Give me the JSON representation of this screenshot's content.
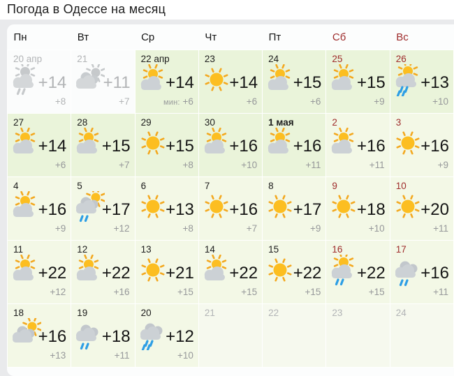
{
  "title": "Погода в Одессе на месяц",
  "min_prefix": "мин:",
  "colors": {
    "weekend": "#9e2b2b",
    "hl_border": "#7abd40",
    "hl_bg": "#eaf4da",
    "cell_bg": "#f3f8e6",
    "next_bg": "#f6f9ee",
    "past_bg": "#fbfcfc",
    "sun": "#fcbe21",
    "sun_ray": "#f3a81f",
    "cloud": "#ccd1d5",
    "cloud_dark": "#c2c7cc",
    "rain": "#2d9ee5"
  },
  "weekdays": [
    {
      "label": "Пн",
      "weekend": false
    },
    {
      "label": "Вт",
      "weekend": false
    },
    {
      "label": "Ср",
      "weekend": false
    },
    {
      "label": "Чт",
      "weekend": false
    },
    {
      "label": "Пт",
      "weekend": false
    },
    {
      "label": "Сб",
      "weekend": true
    },
    {
      "label": "Вс",
      "weekend": true
    }
  ],
  "days": [
    {
      "date": "20 апр",
      "state": "past",
      "icon": "sun-cloud-rain2",
      "tmax": "+14",
      "tmin": "+8"
    },
    {
      "date": "21",
      "state": "past",
      "icon": "clouds-sun",
      "tmax": "+11",
      "tmin": "+7"
    },
    {
      "date": "22 апр",
      "state": "highlight",
      "icon": "sun-cloud",
      "tmax": "+14",
      "tmin": "+6",
      "min_label": true
    },
    {
      "date": "23",
      "state": "highlight",
      "icon": "sun",
      "tmax": "+14",
      "tmin": "+6"
    },
    {
      "date": "24",
      "state": "highlight",
      "icon": "sun-cloud",
      "tmax": "+15",
      "tmin": "+6"
    },
    {
      "date": "25",
      "state": "highlight",
      "weekend": true,
      "icon": "sun-cloud",
      "tmax": "+15",
      "tmin": "+9"
    },
    {
      "date": "26",
      "state": "highlight",
      "weekend": true,
      "icon": "sun-cloud-rain4",
      "tmax": "+13",
      "tmin": "+10"
    },
    {
      "date": "27",
      "state": "highlight",
      "icon": "sun-cloud",
      "tmax": "+14",
      "tmin": "+6"
    },
    {
      "date": "28",
      "state": "highlight",
      "icon": "sun-cloud",
      "tmax": "+15",
      "tmin": "+7"
    },
    {
      "date": "29",
      "state": "highlight",
      "icon": "sun",
      "tmax": "+15",
      "tmin": "+8"
    },
    {
      "date": "30",
      "state": "highlight",
      "icon": "sun-cloud",
      "tmax": "+16",
      "tmin": "+10"
    },
    {
      "date": "1 мая",
      "state": "highlight",
      "bold": true,
      "icon": "sun-cloud",
      "tmax": "+16",
      "tmin": "+11"
    },
    {
      "date": "2",
      "state": "normal",
      "weekend": true,
      "icon": "sun-cloud",
      "tmax": "+16",
      "tmin": "+11"
    },
    {
      "date": "3",
      "state": "normal",
      "weekend": true,
      "icon": "sun",
      "tmax": "+16",
      "tmin": "+9"
    },
    {
      "date": "4",
      "state": "normal",
      "icon": "sun-cloud",
      "tmax": "+16",
      "tmin": "+9"
    },
    {
      "date": "5",
      "state": "normal",
      "icon": "clouds-sun-rain2",
      "tmax": "+17",
      "tmin": "+12"
    },
    {
      "date": "6",
      "state": "normal",
      "icon": "sun",
      "tmax": "+13",
      "tmin": "+8"
    },
    {
      "date": "7",
      "state": "normal",
      "icon": "sun",
      "tmax": "+16",
      "tmin": "+7"
    },
    {
      "date": "8",
      "state": "normal",
      "icon": "sun",
      "tmax": "+17",
      "tmin": "+9"
    },
    {
      "date": "9",
      "state": "normal",
      "weekend": true,
      "icon": "sun",
      "tmax": "+18",
      "tmin": "+10"
    },
    {
      "date": "10",
      "state": "normal",
      "weekend": true,
      "icon": "sun",
      "tmax": "+20",
      "tmin": "+11"
    },
    {
      "date": "11",
      "state": "normal",
      "icon": "sun-cloud",
      "tmax": "+22",
      "tmin": "+12"
    },
    {
      "date": "12",
      "state": "normal",
      "icon": "sun-cloud",
      "tmax": "+22",
      "tmin": "+16"
    },
    {
      "date": "13",
      "state": "normal",
      "icon": "sun",
      "tmax": "+21",
      "tmin": "+15"
    },
    {
      "date": "14",
      "state": "normal",
      "icon": "sun-cloud",
      "tmax": "+22",
      "tmin": "+15"
    },
    {
      "date": "15",
      "state": "normal",
      "icon": "sun",
      "tmax": "+22",
      "tmin": "+15"
    },
    {
      "date": "16",
      "state": "normal",
      "weekend": true,
      "icon": "sun-cloud-rain2",
      "tmax": "+22",
      "tmin": "+15"
    },
    {
      "date": "17",
      "state": "normal",
      "weekend": true,
      "icon": "clouds-rain2",
      "tmax": "+16",
      "tmin": "+11"
    },
    {
      "date": "18",
      "state": "normal",
      "icon": "clouds-sun",
      "tmax": "+16",
      "tmin": "+13"
    },
    {
      "date": "19",
      "state": "normal",
      "icon": "clouds-rain2",
      "tmax": "+18",
      "tmin": "+11"
    },
    {
      "date": "20",
      "state": "normal",
      "icon": "clouds-rain4",
      "tmax": "+12",
      "tmin": "+10"
    },
    {
      "date": "21",
      "state": "next"
    },
    {
      "date": "22",
      "state": "next"
    },
    {
      "date": "23",
      "state": "next"
    },
    {
      "date": "24",
      "state": "next"
    }
  ]
}
